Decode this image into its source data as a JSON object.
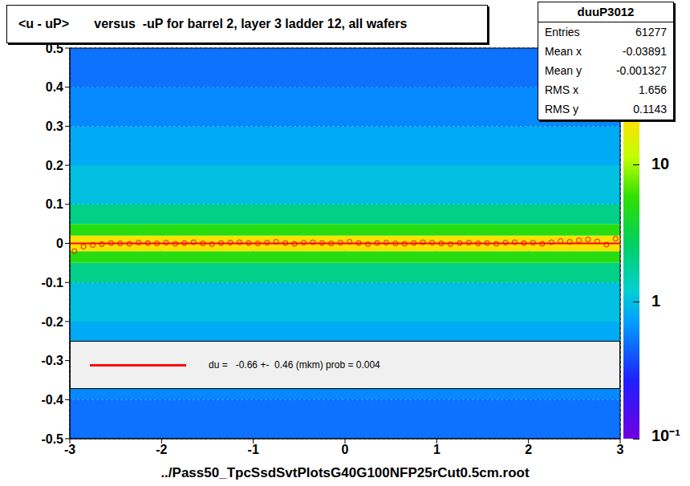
{
  "chart_data": {
    "type": "scatter",
    "title": "<u - uP>       versus  -uP for barrel 2, layer 3 ladder 12, all wafers",
    "x_label": "../Pass50_TpcSsdSvtPlotsG40G100NFP25rCut0.5cm.root",
    "xlim": [
      -3,
      3
    ],
    "xticks": [
      -3,
      -2,
      -1,
      0,
      1,
      2,
      3
    ],
    "ylim": [
      -0.5,
      0.5
    ],
    "yticks": [
      -0.5,
      -0.4,
      -0.3,
      -0.2,
      -0.1,
      0,
      0.1,
      0.2,
      0.3,
      0.4,
      0.5
    ],
    "grid": true,
    "color": "#ff0000",
    "marker": "circle",
    "x": [
      -2.95,
      -2.85,
      -2.75,
      -2.65,
      -2.55,
      -2.45,
      -2.35,
      -2.25,
      -2.15,
      -2.05,
      -1.95,
      -1.85,
      -1.75,
      -1.65,
      -1.55,
      -1.45,
      -1.35,
      -1.25,
      -1.15,
      -1.05,
      -0.95,
      -0.85,
      -0.75,
      -0.65,
      -0.55,
      -0.45,
      -0.35,
      -0.25,
      -0.15,
      -0.05,
      0.05,
      0.15,
      0.25,
      0.35,
      0.45,
      0.55,
      0.65,
      0.75,
      0.85,
      0.95,
      1.05,
      1.15,
      1.25,
      1.35,
      1.45,
      1.55,
      1.65,
      1.75,
      1.85,
      1.95,
      2.05,
      2.15,
      2.25,
      2.35,
      2.45,
      2.55,
      2.65,
      2.75,
      2.85,
      2.95
    ],
    "values": [
      -0.02,
      -0.008,
      -0.004,
      -0.002,
      0.001,
      0,
      -0.001,
      0.002,
      0.001,
      0,
      0.002,
      -0.001,
      0.001,
      0.003,
      0,
      -0.002,
      0.001,
      0.002,
      0.003,
      0.001,
      0,
      0.002,
      0.004,
      0.001,
      -0.001,
      0.002,
      0.003,
      0.001,
      0,
      0.002,
      0.004,
      0.001,
      -0.002,
      0.001,
      0.002,
      0,
      -0.001,
      0.001,
      0.003,
      0.002,
      0,
      -0.002,
      0.001,
      0.002,
      0,
      0.001,
      -0.001,
      0.002,
      0.003,
      0.001,
      0.002,
      -0.001,
      0.003,
      0.006,
      0.004,
      0.008,
      0.01,
      0.005,
      -0.003,
      0.012
    ],
    "fit": {
      "y": -6.6e-05,
      "color": "#ff0000",
      "label": "du =   -0.66 +-  0.46 (mkm) prob = 0.004"
    },
    "density": {
      "y_bins": [
        -0.5,
        -0.4,
        -0.3,
        -0.2,
        -0.1,
        -0.05,
        -0.02,
        0.02,
        0.05,
        0.1,
        0.2,
        0.3,
        0.4,
        0.5
      ],
      "counts": [
        0.5,
        0.6,
        0.8,
        1,
        2,
        5,
        20,
        5,
        2,
        1,
        0.8,
        0.6,
        0.5
      ]
    },
    "colorbar": {
      "range": [
        0.1,
        70
      ],
      "ticks": [
        {
          "value": 0.1,
          "label": "10⁻¹"
        },
        1,
        10
      ]
    },
    "stats": {
      "title": "duuP3012",
      "rows": [
        {
          "label": "Entries",
          "value": 61277
        },
        {
          "label": "Mean x",
          "value": -0.03891
        },
        {
          "label": "Mean y",
          "value": -0.001327
        },
        {
          "label": "RMS x",
          "value": 1.656
        },
        {
          "label": "RMS y",
          "value": 0.1143
        }
      ]
    }
  }
}
